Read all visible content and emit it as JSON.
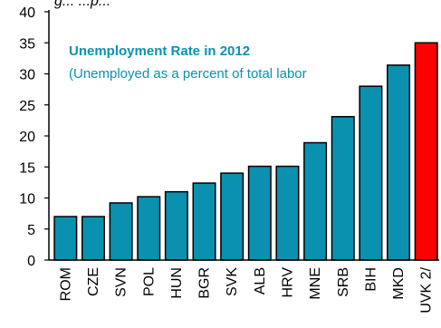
{
  "chart_data": {
    "type": "bar",
    "title": "Unemployment Rate in 2012",
    "subtitle": "(Unemployed as a  percent of total labor",
    "top_fragment": "g... ...p...",
    "xlabel": "",
    "ylabel": "",
    "ylim": [
      0,
      40
    ],
    "yticks": [
      0,
      5,
      10,
      15,
      20,
      25,
      30,
      35,
      40
    ],
    "grid": false,
    "categories": [
      "ROM",
      "CZE",
      "SVN",
      "POL",
      "HUN",
      "BGR",
      "SVK",
      "ALB",
      "HRV",
      "MNE",
      "SRB",
      "BIH",
      "MKD",
      "UVK 2/"
    ],
    "values": [
      7,
      7,
      9.2,
      10.2,
      11,
      12.4,
      14,
      15.1,
      15.1,
      18.9,
      23.1,
      28,
      31.4,
      35
    ],
    "colors": {
      "bar": "#0a91b0",
      "highlight": "#ff0000",
      "highlight_category": "UVK 2/",
      "title": "#0a91b0"
    }
  }
}
